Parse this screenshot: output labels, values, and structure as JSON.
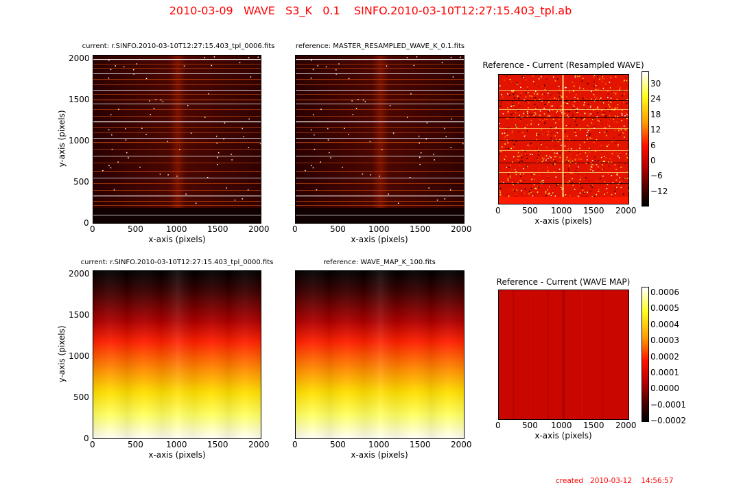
{
  "title": "2010-03-09   WAVE   S3_K   0.1    SINFO.2010-03-10T12:27:15.403_tpl.ab",
  "created": "created   2010-03-12    14:56:57",
  "chart_data": [
    {
      "type": "heatmap",
      "title": "current: r.SINFO.2010-03-10T12:27:15.403_tpl_0006.fits",
      "xlabel": "x-axis (pixels)",
      "ylabel": "y-axis (pixels)",
      "xlim": [
        0,
        2048
      ],
      "ylim": [
        0,
        2048
      ],
      "xticks": [
        "0",
        "500",
        "1000",
        "1500",
        "2000"
      ],
      "yticks": [
        "0",
        "500",
        "1000",
        "1500",
        "2000"
      ],
      "colormap": "hot"
    },
    {
      "type": "heatmap",
      "title": "reference: MASTER_RESAMPLED_WAVE_K_0.1.fits",
      "xlabel": "x-axis (pixels)",
      "xlim": [
        0,
        2048
      ],
      "ylim": [
        0,
        2048
      ],
      "xticks": [
        "0",
        "500",
        "1000",
        "1500",
        "2000"
      ],
      "colormap": "hot"
    },
    {
      "type": "heatmap",
      "title": "Reference - Current (Resampled WAVE)",
      "xlabel": "x-axis (pixels)",
      "xlim": [
        0,
        2048
      ],
      "xticks": [
        "0",
        "500",
        "1000",
        "1500",
        "2000"
      ],
      "colormap": "hot",
      "colorbar_ticks": [
        "30",
        "24",
        "18",
        "12",
        "6",
        "0",
        "−6",
        "−12"
      ],
      "colorbar_range": [
        -17,
        34
      ]
    },
    {
      "type": "heatmap",
      "title": "current: r.SINFO.2010-03-10T12:27:15.403_tpl_0000.fits",
      "xlabel": "x-axis (pixels)",
      "ylabel": "y-axis (pixels)",
      "xlim": [
        0,
        2048
      ],
      "ylim": [
        0,
        2048
      ],
      "xticks": [
        "0",
        "500",
        "1000",
        "1500",
        "2000"
      ],
      "yticks": [
        "0",
        "500",
        "1000",
        "1500",
        "2000"
      ],
      "colormap": "hot"
    },
    {
      "type": "heatmap",
      "title": "reference: WAVE_MAP_K_100.fits",
      "xlabel": "x-axis (pixels)",
      "xlim": [
        0,
        2048
      ],
      "ylim": [
        0,
        2048
      ],
      "xticks": [
        "0",
        "500",
        "1000",
        "1500",
        "2000"
      ],
      "colormap": "hot"
    },
    {
      "type": "heatmap",
      "title": "Reference - Current (WAVE MAP)",
      "xlabel": "x-axis (pixels)",
      "xlim": [
        0,
        2048
      ],
      "xticks": [
        "0",
        "500",
        "1000",
        "1500",
        "2000"
      ],
      "colormap": "hot",
      "colorbar_ticks": [
        "0.0006",
        "0.0005",
        "0.0004",
        "0.0003",
        "0.0002",
        "0.0001",
        "0.0000",
        "−0.0001",
        "−0.0002"
      ],
      "colorbar_range": [
        -0.0002,
        0.00062
      ]
    }
  ]
}
